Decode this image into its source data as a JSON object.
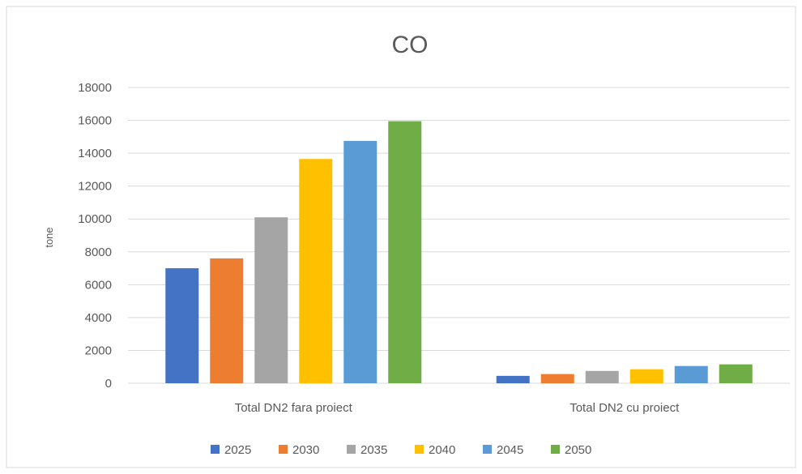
{
  "chart_data": {
    "type": "bar",
    "title": "CO",
    "xlabel": "",
    "ylabel": "tone",
    "ylim": [
      0,
      18000
    ],
    "yticks": [
      0,
      2000,
      4000,
      6000,
      8000,
      10000,
      12000,
      14000,
      16000,
      18000
    ],
    "categories": [
      "Total DN2 fara proiect",
      "Total DN2 cu proiect"
    ],
    "grid": true,
    "legend_position": "bottom",
    "series": [
      {
        "name": "2025",
        "color": "#4472C4",
        "values": [
          7000,
          450
        ]
      },
      {
        "name": "2030",
        "color": "#ED7D31",
        "values": [
          7600,
          560
        ]
      },
      {
        "name": "2035",
        "color": "#A5A5A5",
        "values": [
          10100,
          750
        ]
      },
      {
        "name": "2040",
        "color": "#FFC000",
        "values": [
          13650,
          850
        ]
      },
      {
        "name": "2045",
        "color": "#5B9BD5",
        "values": [
          14750,
          1050
        ]
      },
      {
        "name": "2050",
        "color": "#70AD47",
        "values": [
          15950,
          1150
        ]
      }
    ]
  }
}
